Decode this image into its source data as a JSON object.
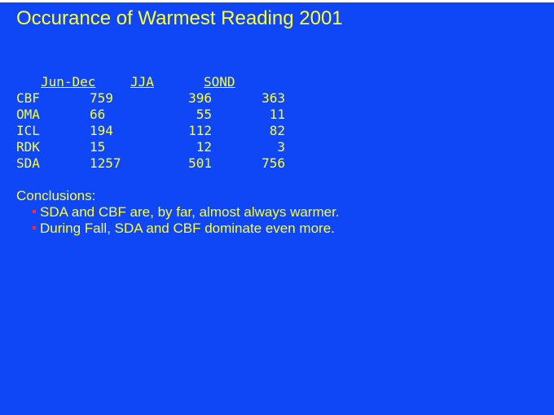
{
  "title": "Occurance of Warmest Reading 2001",
  "table": {
    "headers": [
      "Jun-Dec",
      "JJA",
      "SOND"
    ],
    "rows": [
      {
        "station": "CBF",
        "jun_dec": "759",
        "jja": "396",
        "sond": "363"
      },
      {
        "station": "OMA",
        "jun_dec": "66",
        "jja": "55",
        "sond": "11"
      },
      {
        "station": "ICL",
        "jun_dec": "194",
        "jja": "112",
        "sond": "82"
      },
      {
        "station": "RDK",
        "jun_dec": "15",
        "jja": "12",
        "sond": "3"
      },
      {
        "station": "SDA",
        "jun_dec": "1257",
        "jja": "501",
        "sond": "756"
      }
    ]
  },
  "conclusions": {
    "heading": "Conclusions:",
    "bullets": [
      "SDA and CBF are, by far, almost always warmer.",
      "During Fall, SDA and CBF dominate even more."
    ],
    "bullet_color": "#ff2a2a"
  },
  "colors": {
    "background": "#0f47f7",
    "text": "#ffff33"
  }
}
